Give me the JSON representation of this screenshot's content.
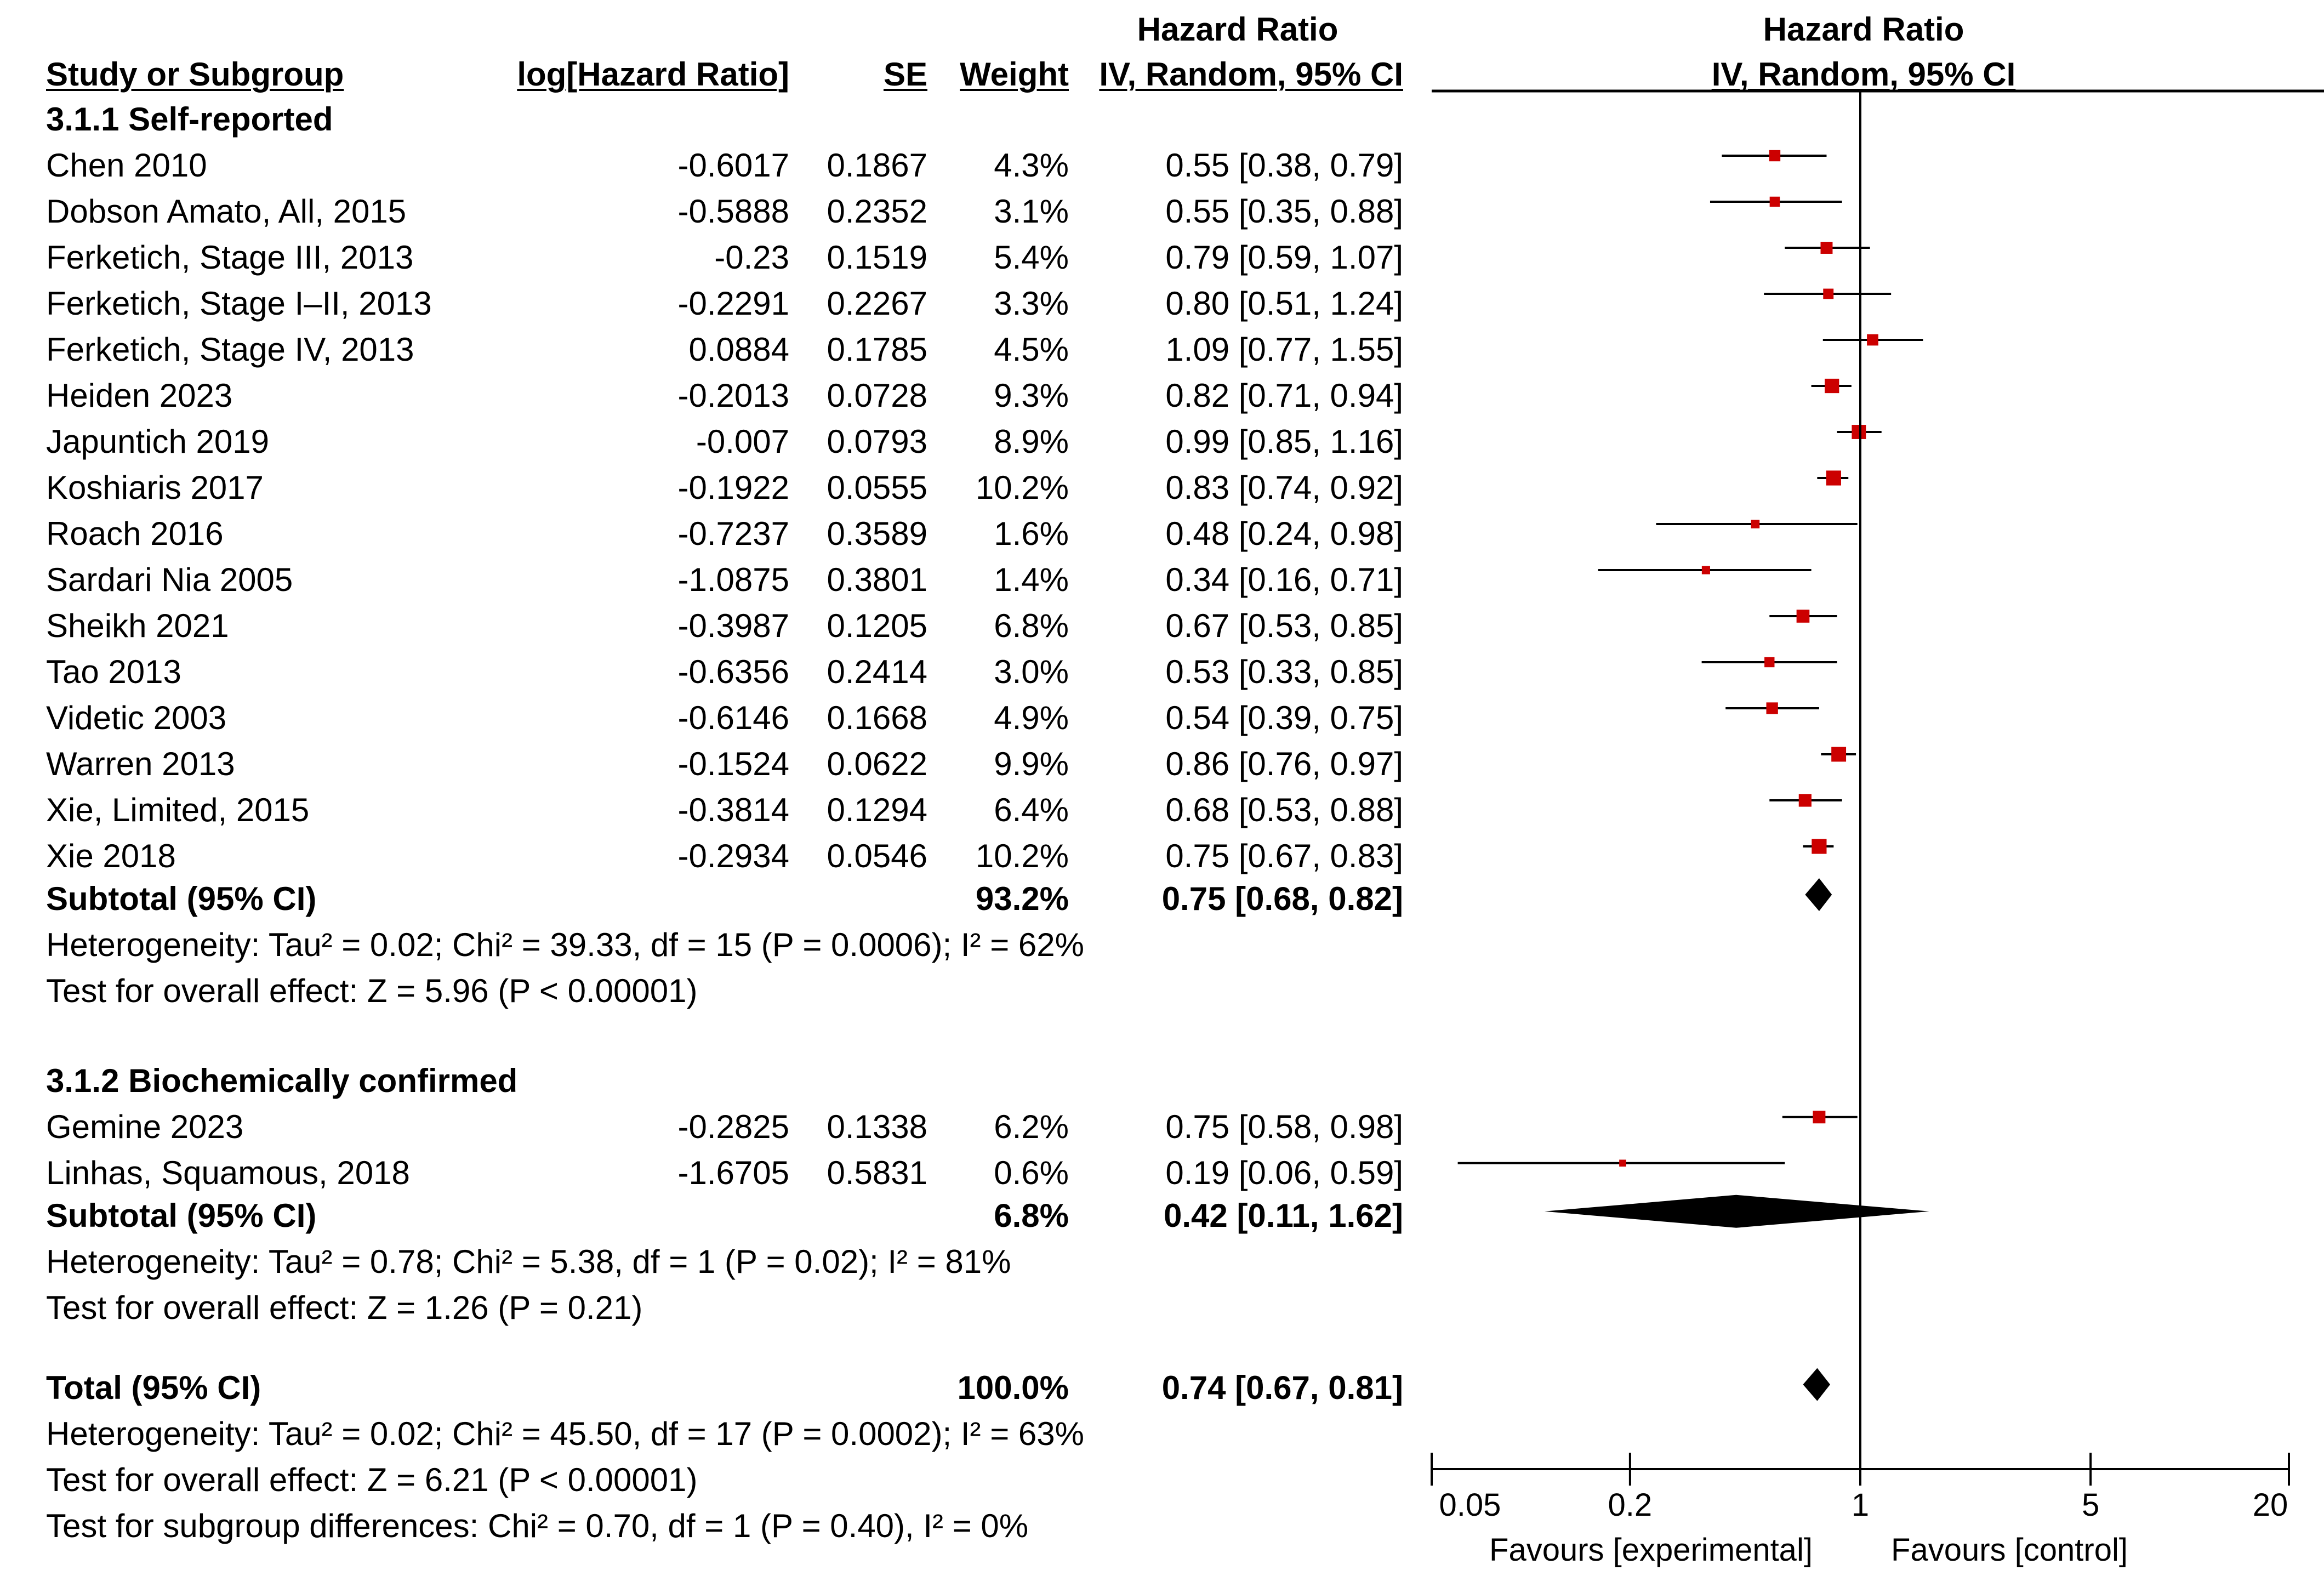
{
  "header": {
    "col_hr_top": "Hazard Ratio",
    "col_plot_top": "Hazard Ratio",
    "study": "Study or Subgroup",
    "loghr": "log[Hazard Ratio]",
    "se": "SE",
    "weight": "Weight",
    "ci_method": "IV, Random, 95% CI",
    "plot_method": "IV, Random, 95% CI"
  },
  "groups": [
    {
      "title": "3.1.1 Self-reported",
      "studies": [
        {
          "name": "Chen 2010",
          "loghr": "-0.6017",
          "se": "0.1867",
          "weight": "4.3%",
          "ci": "0.55 [0.38, 0.79]",
          "hr": 0.55,
          "lo": 0.38,
          "hi": 0.79,
          "w": 4.3
        },
        {
          "name": "Dobson Amato, All, 2015",
          "loghr": "-0.5888",
          "se": "0.2352",
          "weight": "3.1%",
          "ci": "0.55 [0.35, 0.88]",
          "hr": 0.55,
          "lo": 0.35,
          "hi": 0.88,
          "w": 3.1
        },
        {
          "name": "Ferketich, Stage III, 2013",
          "loghr": "-0.23",
          "se": "0.1519",
          "weight": "5.4%",
          "ci": "0.79 [0.59, 1.07]",
          "hr": 0.79,
          "lo": 0.59,
          "hi": 1.07,
          "w": 5.4
        },
        {
          "name": "Ferketich, Stage I–II, 2013",
          "loghr": "-0.2291",
          "se": "0.2267",
          "weight": "3.3%",
          "ci": "0.80 [0.51, 1.24]",
          "hr": 0.8,
          "lo": 0.51,
          "hi": 1.24,
          "w": 3.3
        },
        {
          "name": "Ferketich, Stage IV, 2013",
          "loghr": "0.0884",
          "se": "0.1785",
          "weight": "4.5%",
          "ci": "1.09 [0.77, 1.55]",
          "hr": 1.09,
          "lo": 0.77,
          "hi": 1.55,
          "w": 4.5
        },
        {
          "name": "Heiden 2023",
          "loghr": "-0.2013",
          "se": "0.0728",
          "weight": "9.3%",
          "ci": "0.82 [0.71, 0.94]",
          "hr": 0.82,
          "lo": 0.71,
          "hi": 0.94,
          "w": 9.3
        },
        {
          "name": "Japuntich 2019",
          "loghr": "-0.007",
          "se": "0.0793",
          "weight": "8.9%",
          "ci": "0.99 [0.85, 1.16]",
          "hr": 0.99,
          "lo": 0.85,
          "hi": 1.16,
          "w": 8.9
        },
        {
          "name": "Koshiaris 2017",
          "loghr": "-0.1922",
          "se": "0.0555",
          "weight": "10.2%",
          "ci": "0.83 [0.74, 0.92]",
          "hr": 0.83,
          "lo": 0.74,
          "hi": 0.92,
          "w": 10.2
        },
        {
          "name": "Roach 2016",
          "loghr": "-0.7237",
          "se": "0.3589",
          "weight": "1.6%",
          "ci": "0.48 [0.24, 0.98]",
          "hr": 0.48,
          "lo": 0.24,
          "hi": 0.98,
          "w": 1.6
        },
        {
          "name": "Sardari Nia 2005",
          "loghr": "-1.0875",
          "se": "0.3801",
          "weight": "1.4%",
          "ci": "0.34 [0.16, 0.71]",
          "hr": 0.34,
          "lo": 0.16,
          "hi": 0.71,
          "w": 1.4
        },
        {
          "name": "Sheikh 2021",
          "loghr": "-0.3987",
          "se": "0.1205",
          "weight": "6.8%",
          "ci": "0.67 [0.53, 0.85]",
          "hr": 0.67,
          "lo": 0.53,
          "hi": 0.85,
          "w": 6.8
        },
        {
          "name": "Tao 2013",
          "loghr": "-0.6356",
          "se": "0.2414",
          "weight": "3.0%",
          "ci": "0.53 [0.33, 0.85]",
          "hr": 0.53,
          "lo": 0.33,
          "hi": 0.85,
          "w": 3.0
        },
        {
          "name": "Videtic 2003",
          "loghr": "-0.6146",
          "se": "0.1668",
          "weight": "4.9%",
          "ci": "0.54 [0.39, 0.75]",
          "hr": 0.54,
          "lo": 0.39,
          "hi": 0.75,
          "w": 4.9
        },
        {
          "name": "Warren 2013",
          "loghr": "-0.1524",
          "se": "0.0622",
          "weight": "9.9%",
          "ci": "0.86 [0.76, 0.97]",
          "hr": 0.86,
          "lo": 0.76,
          "hi": 0.97,
          "w": 9.9
        },
        {
          "name": "Xie, Limited, 2015",
          "loghr": "-0.3814",
          "se": "0.1294",
          "weight": "6.4%",
          "ci": "0.68 [0.53, 0.88]",
          "hr": 0.68,
          "lo": 0.53,
          "hi": 0.88,
          "w": 6.4
        },
        {
          "name": "Xie 2018",
          "loghr": "-0.2934",
          "se": "0.0546",
          "weight": "10.2%",
          "ci": "0.75 [0.67, 0.83]",
          "hr": 0.75,
          "lo": 0.67,
          "hi": 0.83,
          "w": 10.2
        }
      ],
      "subtotal": {
        "label": "Subtotal (95% CI)",
        "weight": "93.2%",
        "ci": "0.75 [0.68, 0.82]",
        "hr": 0.75,
        "lo": 0.68,
        "hi": 0.82
      },
      "heterogeneity": "Heterogeneity: Tau² = 0.02; Chi² = 39.33, df = 15 (P = 0.0006); I² = 62%",
      "overall": "Test for overall effect: Z = 5.96 (P < 0.00001)"
    },
    {
      "title": "3.1.2 Biochemically confirmed",
      "studies": [
        {
          "name": "Gemine 2023",
          "loghr": "-0.2825",
          "se": "0.1338",
          "weight": "6.2%",
          "ci": "0.75 [0.58, 0.98]",
          "hr": 0.75,
          "lo": 0.58,
          "hi": 0.98,
          "w": 6.2
        },
        {
          "name": "Linhas, Squamous, 2018",
          "loghr": "-1.6705",
          "se": "0.5831",
          "weight": "0.6%",
          "ci": "0.19 [0.06, 0.59]",
          "hr": 0.19,
          "lo": 0.06,
          "hi": 0.59,
          "w": 0.6
        }
      ],
      "subtotal": {
        "label": "Subtotal (95% CI)",
        "weight": "6.8%",
        "ci": "0.42 [0.11, 1.62]",
        "hr": 0.42,
        "lo": 0.11,
        "hi": 1.62
      },
      "heterogeneity": "Heterogeneity: Tau² = 0.78; Chi² = 5.38, df = 1 (P = 0.02); I² = 81%",
      "overall": "Test for overall effect: Z = 1.26 (P = 0.21)"
    }
  ],
  "total": {
    "label": "Total (95% CI)",
    "weight": "100.0%",
    "ci": "0.74 [0.67, 0.81]",
    "hr": 0.74,
    "lo": 0.67,
    "hi": 0.81,
    "heterogeneity": "Heterogeneity: Tau² = 0.02; Chi² = 45.50, df = 17 (P = 0.0002); I² = 63%",
    "overall": "Test for overall effect: Z = 6.21 (P < 0.00001)",
    "subgroup": "Test for subgroup differences: Chi² = 0.70, df = 1 (P = 0.40), I² = 0%"
  },
  "axis": {
    "ticks": [
      0.05,
      0.2,
      1,
      5,
      20
    ],
    "tick_labels": [
      "0.05",
      "0.2",
      "1",
      "5",
      "20"
    ],
    "favours_left": "Favours [experimental]",
    "favours_right": "Favours [control]"
  },
  "chart_data": {
    "type": "forest",
    "title": "Hazard Ratio IV, Random, 95% CI",
    "scale": "log",
    "xlim": [
      0.05,
      20
    ],
    "reference_line": 1,
    "xlabel_left": "Favours [experimental]",
    "xlabel_right": "Favours [control]",
    "colors": {
      "marker": "#cc0000",
      "line": "#000000",
      "diamond": "#000000"
    }
  }
}
